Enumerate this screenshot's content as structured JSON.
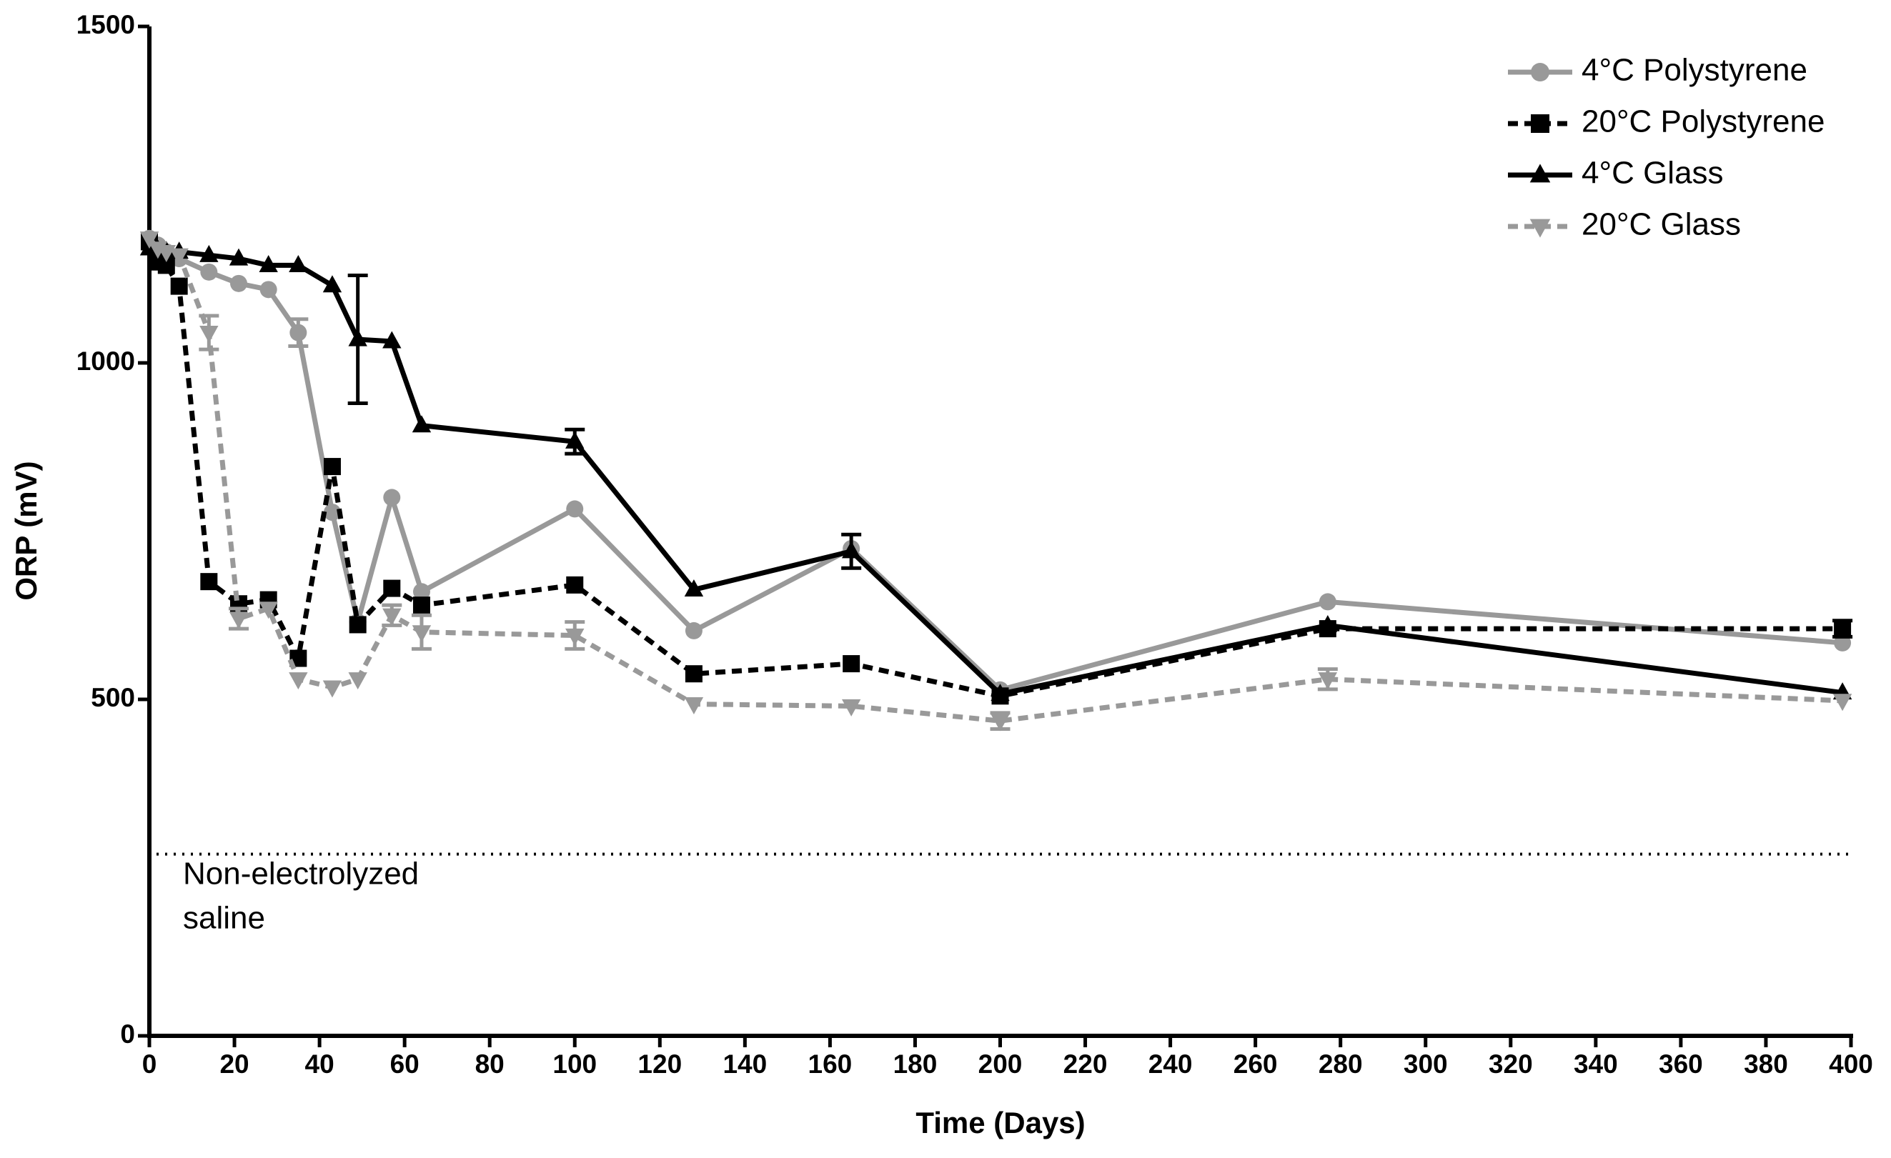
{
  "chart_data": {
    "type": "line",
    "x_label": "Time (Days)",
    "y_label": "ORP (mV)",
    "x": [
      0,
      2,
      4,
      7,
      14,
      21,
      28,
      35,
      43,
      49,
      57,
      64,
      100,
      128,
      165,
      200,
      277,
      398
    ],
    "series": [
      {
        "name": "4°C Polystyrene",
        "color": "#999999",
        "dashed": false,
        "marker": "circle",
        "values": [
          1185,
          1175,
          1165,
          1155,
          1135,
          1118,
          1109,
          1045,
          778,
          615,
          800,
          660,
          783,
          602,
          724,
          514,
          645,
          584
        ],
        "errors": [
          null,
          null,
          null,
          null,
          null,
          null,
          null,
          20,
          null,
          null,
          null,
          null,
          null,
          null,
          null,
          null,
          null,
          null
        ]
      },
      {
        "name": "20°C Polystyrene",
        "color": "#000000",
        "dashed": true,
        "marker": "square",
        "values": [
          1180,
          1150,
          1145,
          1114,
          675,
          642,
          648,
          561,
          846,
          611,
          665,
          640,
          670,
          538,
          553,
          505,
          605,
          605
        ],
        "errors": [
          null,
          null,
          null,
          null,
          null,
          null,
          null,
          null,
          null,
          null,
          null,
          null,
          null,
          null,
          null,
          null,
          null,
          12
        ]
      },
      {
        "name": "4°C Glass",
        "color": "#000000",
        "dashed": false,
        "marker": "triangle-up",
        "values": [
          1170,
          1168,
          1166,
          1165,
          1160,
          1155,
          1145,
          1145,
          1115,
          1035,
          1032,
          907,
          883,
          663,
          720,
          508,
          610,
          510
        ],
        "errors": [
          null,
          null,
          null,
          null,
          null,
          null,
          null,
          null,
          null,
          95,
          null,
          null,
          18,
          null,
          25,
          null,
          null,
          null
        ]
      },
      {
        "name": "20°C Glass",
        "color": "#999999",
        "dashed": true,
        "marker": "triangle-down",
        "values": [
          1185,
          1170,
          1165,
          1160,
          1045,
          620,
          635,
          530,
          518,
          530,
          625,
          600,
          595,
          493,
          490,
          468,
          530,
          498
        ],
        "errors": [
          null,
          null,
          null,
          null,
          25,
          15,
          null,
          null,
          null,
          null,
          15,
          25,
          20,
          null,
          null,
          12,
          15,
          null
        ]
      }
    ],
    "reference_line": {
      "value": 270,
      "label": [
        "Non-electrolyzed",
        "saline"
      ]
    },
    "xlim": [
      0,
      400
    ],
    "xticks": [
      0,
      20,
      40,
      60,
      80,
      100,
      120,
      140,
      160,
      180,
      200,
      220,
      240,
      260,
      280,
      300,
      320,
      340,
      360,
      380,
      400
    ],
    "ylim": [
      0,
      1500
    ],
    "yticks": [
      0,
      500,
      1000,
      1500
    ],
    "legend": "upper-right",
    "grid": false
  }
}
